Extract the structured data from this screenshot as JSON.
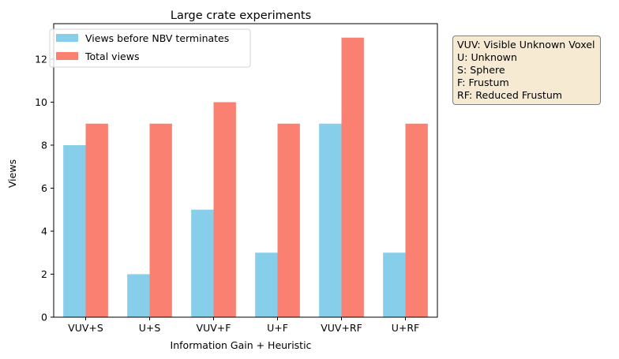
{
  "chart_data": {
    "type": "bar",
    "title": "Large crate experiments",
    "xlabel": "Information Gain + Heuristic",
    "ylabel": "Views",
    "categories": [
      "VUV+S",
      "U+S",
      "VUV+F",
      "U+F",
      "VUV+RF",
      "U+RF"
    ],
    "series": [
      {
        "name": "Views before NBV terminates",
        "color": "#87ceeb",
        "values": [
          8,
          2,
          5,
          3,
          9,
          3
        ]
      },
      {
        "name": "Total views",
        "color": "#fa8072",
        "values": [
          9,
          9,
          10,
          9,
          13,
          9
        ]
      }
    ],
    "ylim": [
      0,
      13.65
    ],
    "yticks": [
      0,
      2,
      4,
      6,
      8,
      10,
      12
    ],
    "grid": false,
    "legend_position": "top-left"
  },
  "annotation": {
    "lines": [
      "VUV: Visible Unknown Voxel",
      "U: Unknown",
      "S: Sphere",
      "F: Frustum",
      "RF: Reduced Frustum"
    ]
  }
}
